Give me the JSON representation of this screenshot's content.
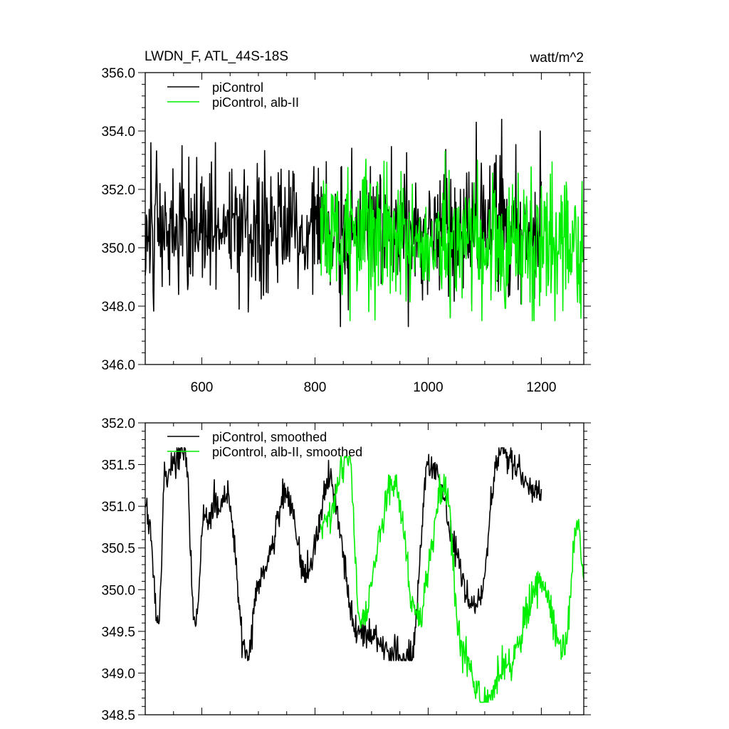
{
  "chart_data": [
    {
      "type": "line",
      "title": "LWDN_F, ATL_44S-18S",
      "units_label": "watt/m^2",
      "xlim": [
        500,
        1275
      ],
      "ylim": [
        346,
        356
      ],
      "x_ticks": [
        600,
        800,
        1000,
        1200
      ],
      "x_tick_labels": [
        "600",
        "800",
        "1000",
        "1200"
      ],
      "y_ticks": [
        346,
        348,
        350,
        352,
        354,
        356
      ],
      "y_tick_labels": [
        "346.0",
        "348.0",
        "350.0",
        "352.0",
        "354.0",
        "356.0"
      ],
      "grid": false,
      "legend": "top-left",
      "series": [
        {
          "name": "piControl",
          "color": "#000000",
          "x_range": [
            500,
            1200
          ],
          "mean": 350.6,
          "amplitude": 1.3,
          "min": 347.3,
          "max": 354.4,
          "key_points": [
            [
              510,
              353.6
            ],
            [
              565,
              353.5
            ],
            [
              682,
              347.8
            ],
            [
              965,
              347.3
            ],
            [
              1085,
              354.3
            ],
            [
              1130,
              354.4
            ]
          ]
        },
        {
          "name": "piControl, alb-II",
          "color": "#00ee00",
          "x_range": [
            810,
            1275
          ],
          "mean": 350.2,
          "amplitude": 1.3,
          "min": 347.5,
          "max": 353.4,
          "key_points": [
            [
              1030,
              353.3
            ],
            [
              1095,
              347.5
            ]
          ]
        }
      ]
    },
    {
      "type": "line",
      "title": "",
      "xlim": [
        500,
        1275
      ],
      "ylim": [
        348.5,
        352
      ],
      "x_ticks": [
        600,
        800,
        1000,
        1200
      ],
      "x_tick_labels": [
        "",
        "",
        "",
        ""
      ],
      "y_ticks": [
        348.5,
        349,
        349.5,
        350,
        350.5,
        351,
        351.5,
        352
      ],
      "y_tick_labels": [
        "348.5",
        "349.0",
        "349.5",
        "350.0",
        "350.5",
        "351.0",
        "351.5",
        "352.0"
      ],
      "grid": false,
      "legend": "top-left",
      "series": [
        {
          "name": "piControl, smoothed",
          "color": "#000000",
          "x_range": [
            500,
            1200
          ],
          "mean": 350.45,
          "amplitude": 0.45,
          "min": 349.15,
          "max": 351.7,
          "key_points": [
            [
              505,
              350.9
            ],
            [
              523,
              349.6
            ],
            [
              535,
              351.4
            ],
            [
              570,
              351.7
            ],
            [
              588,
              349.6
            ],
            [
              605,
              350.9
            ],
            [
              643,
              351.1
            ],
            [
              682,
              349.2
            ],
            [
              700,
              350.1
            ],
            [
              750,
              351.1
            ],
            [
              785,
              350.2
            ],
            [
              826,
              351.3
            ],
            [
              875,
              349.5
            ],
            [
              970,
              349.15
            ],
            [
              1000,
              351.5
            ],
            [
              1085,
              349.8
            ],
            [
              1130,
              351.7
            ],
            [
              1190,
              351.2
            ]
          ]
        },
        {
          "name": "piControl, alb-II, smoothed",
          "color": "#00ee00",
          "x_range": [
            810,
            1275
          ],
          "mean": 350.0,
          "amplitude": 0.5,
          "min": 348.65,
          "max": 351.6,
          "key_points": [
            [
              815,
              350.8
            ],
            [
              860,
              351.6
            ],
            [
              880,
              349.6
            ],
            [
              940,
              351.3
            ],
            [
              980,
              349.7
            ],
            [
              1030,
              351.2
            ],
            [
              1060,
              349.3
            ],
            [
              1098,
              348.65
            ],
            [
              1140,
              349.1
            ],
            [
              1200,
              350.1
            ],
            [
              1240,
              349.3
            ],
            [
              1265,
              350.8
            ],
            [
              1273,
              350.3
            ]
          ]
        }
      ]
    }
  ]
}
